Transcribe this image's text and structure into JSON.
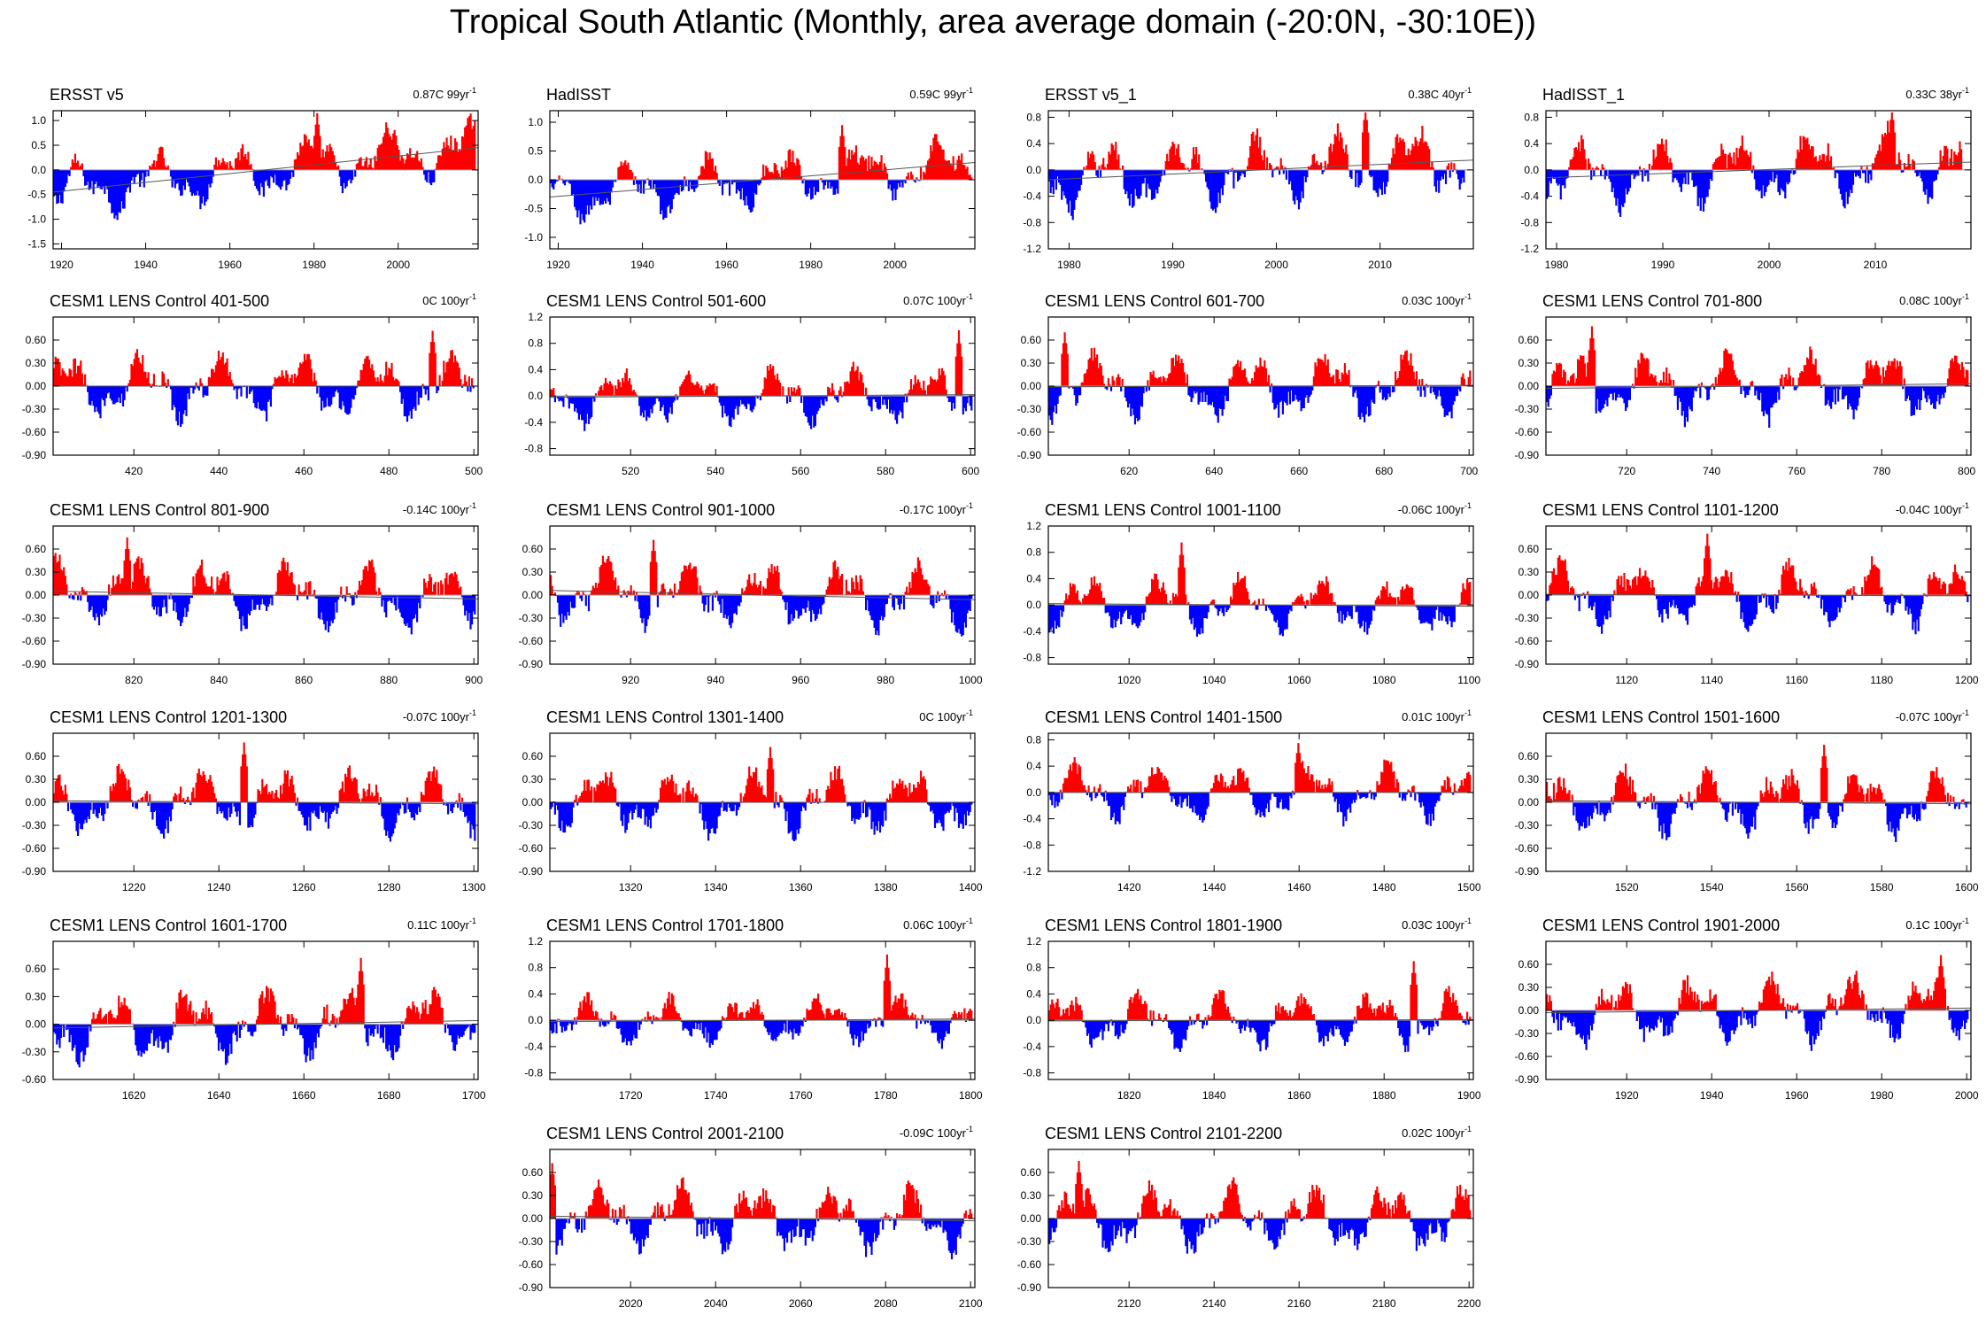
{
  "title": "Tropical South Atlantic (Monthly, area average domain (-20:0N, -30:10E))",
  "colors": {
    "positive": "#ff0000",
    "negative": "#0000ff",
    "zero_line": "#999999",
    "frame": "#000000"
  },
  "chart_data": [
    {
      "type": "bar",
      "title": "ERSST v5",
      "trend": "0.87C 99yr",
      "trend_unit_superscript": "-1",
      "x_range": [
        1918,
        2019
      ],
      "x_ticks": [
        1920,
        1940,
        1960,
        1980,
        2000
      ],
      "y_range": [
        -1.6,
        1.2
      ],
      "y_ticks": [
        "-1.5",
        "-1.0",
        "-0.5",
        "0.0",
        "0.5",
        "1.0"
      ],
      "y_tick_values": [
        -1.5,
        -1.0,
        -0.5,
        0.0,
        0.5,
        1.0
      ],
      "trend_line": [
        -0.45,
        0.45
      ],
      "amplitude": 0.55,
      "spike": 1.15
    },
    {
      "type": "bar",
      "title": "HadISST",
      "trend": "0.59C 99yr",
      "trend_unit_superscript": "-1",
      "x_range": [
        1918,
        2019
      ],
      "x_ticks": [
        1920,
        1940,
        1960,
        1980,
        2000
      ],
      "y_range": [
        -1.2,
        1.2
      ],
      "y_ticks": [
        "-1.0",
        "-0.5",
        "0.0",
        "0.5",
        "1.0"
      ],
      "y_tick_values": [
        -1.0,
        -0.5,
        0.0,
        0.5,
        1.0
      ],
      "trend_line": [
        -0.3,
        0.3
      ],
      "amplitude": 0.45,
      "spike": 0.95
    },
    {
      "type": "bar",
      "title": "ERSST v5_1",
      "trend": "0.38C 40yr",
      "trend_unit_superscript": "-1",
      "x_range": [
        1978,
        2019
      ],
      "x_ticks": [
        1980,
        1990,
        2000,
        2010
      ],
      "y_range": [
        -1.2,
        0.9
      ],
      "y_ticks": [
        "-1.2",
        "-0.8",
        "-0.4",
        "0.0",
        "0.4",
        "0.8"
      ],
      "y_tick_values": [
        -1.2,
        -0.8,
        -0.4,
        0.0,
        0.4,
        0.8
      ],
      "trend_line": [
        -0.15,
        0.15
      ],
      "amplitude": 0.5,
      "spike": 0.95
    },
    {
      "type": "bar",
      "title": "HadISST_1",
      "trend": "0.33C 38yr",
      "trend_unit_superscript": "-1",
      "x_range": [
        1979,
        2019
      ],
      "x_ticks": [
        1980,
        1990,
        2000,
        2010
      ],
      "y_range": [
        -1.2,
        0.9
      ],
      "y_ticks": [
        "-1.2",
        "-0.8",
        "-0.4",
        "0.0",
        "0.4",
        "0.8"
      ],
      "y_tick_values": [
        -1.2,
        -0.8,
        -0.4,
        0.0,
        0.4,
        0.8
      ],
      "trend_line": [
        -0.12,
        0.12
      ],
      "amplitude": 0.5,
      "spike": 0.95
    },
    {
      "type": "bar",
      "title": "CESM1 LENS Control 401-500",
      "trend": "0C 100yr",
      "trend_unit_superscript": "-1",
      "x_range": [
        401,
        501
      ],
      "x_ticks": [
        420,
        440,
        460,
        480,
        500
      ],
      "y_range": [
        -0.9,
        0.9
      ],
      "y_ticks": [
        "-0.90",
        "-0.60",
        "-0.30",
        "0.00",
        "0.30",
        "0.60"
      ],
      "y_tick_values": [
        -0.9,
        -0.6,
        -0.3,
        0.0,
        0.3,
        0.6
      ],
      "trend_line": [
        0,
        0
      ],
      "amplitude": 0.4,
      "spike": 0.72
    },
    {
      "type": "bar",
      "title": "CESM1 LENS Control 501-600",
      "trend": "0.07C 100yr",
      "trend_unit_superscript": "-1",
      "x_range": [
        501,
        601
      ],
      "x_ticks": [
        520,
        540,
        560,
        580,
        600
      ],
      "y_range": [
        -0.9,
        1.2
      ],
      "y_ticks": [
        "-0.8",
        "-0.4",
        "0.0",
        "0.4",
        "0.8",
        "1.2"
      ],
      "y_tick_values": [
        -0.8,
        -0.4,
        0.0,
        0.4,
        0.8,
        1.2
      ],
      "trend_line": [
        -0.02,
        0.02
      ],
      "amplitude": 0.4,
      "spike": 1.0
    },
    {
      "type": "bar",
      "title": "CESM1 LENS Control 601-700",
      "trend": "0.03C 100yr",
      "trend_unit_superscript": "-1",
      "x_range": [
        601,
        701
      ],
      "x_ticks": [
        620,
        640,
        660,
        680,
        700
      ],
      "y_range": [
        -0.9,
        0.9
      ],
      "y_ticks": [
        "-0.90",
        "-0.60",
        "-0.30",
        "0.00",
        "0.30",
        "0.60"
      ],
      "y_tick_values": [
        -0.9,
        -0.6,
        -0.3,
        0.0,
        0.3,
        0.6
      ],
      "trend_line": [
        -0.01,
        0.01
      ],
      "amplitude": 0.4,
      "spike": 0.7
    },
    {
      "type": "bar",
      "title": "CESM1 LENS Control 701-800",
      "trend": "0.08C 100yr",
      "trend_unit_superscript": "-1",
      "x_range": [
        701,
        801
      ],
      "x_ticks": [
        720,
        740,
        760,
        780,
        800
      ],
      "y_range": [
        -0.9,
        0.9
      ],
      "y_ticks": [
        "-0.90",
        "-0.60",
        "-0.30",
        "0.00",
        "0.30",
        "0.60"
      ],
      "y_tick_values": [
        -0.9,
        -0.6,
        -0.3,
        0.0,
        0.3,
        0.6
      ],
      "trend_line": [
        -0.03,
        0.03
      ],
      "amplitude": 0.4,
      "spike": 0.78
    },
    {
      "type": "bar",
      "title": "CESM1 LENS Control 801-900",
      "trend": "-0.14C 100yr",
      "trend_unit_superscript": "-1",
      "x_range": [
        801,
        901
      ],
      "x_ticks": [
        820,
        840,
        860,
        880,
        900
      ],
      "y_range": [
        -0.9,
        0.9
      ],
      "y_ticks": [
        "-0.90",
        "-0.60",
        "-0.30",
        "0.00",
        "0.30",
        "0.60"
      ],
      "y_tick_values": [
        -0.9,
        -0.6,
        -0.3,
        0.0,
        0.3,
        0.6
      ],
      "trend_line": [
        0.05,
        -0.05
      ],
      "amplitude": 0.4,
      "spike": 0.75
    },
    {
      "type": "bar",
      "title": "CESM1 LENS Control 901-1000",
      "trend": "-0.17C 100yr",
      "trend_unit_superscript": "-1",
      "x_range": [
        901,
        1001
      ],
      "x_ticks": [
        920,
        940,
        960,
        980,
        1000
      ],
      "y_range": [
        -0.9,
        0.9
      ],
      "y_ticks": [
        "-0.90",
        "-0.60",
        "-0.30",
        "0.00",
        "0.30",
        "0.60"
      ],
      "y_tick_values": [
        -0.9,
        -0.6,
        -0.3,
        0.0,
        0.3,
        0.6
      ],
      "trend_line": [
        0.06,
        -0.06
      ],
      "amplitude": 0.4,
      "spike": 0.72
    },
    {
      "type": "bar",
      "title": "CESM1 LENS Control 1001-1100",
      "trend": "-0.06C 100yr",
      "trend_unit_superscript": "-1",
      "x_range": [
        1001,
        1101
      ],
      "x_ticks": [
        1020,
        1040,
        1060,
        1080,
        1100
      ],
      "y_range": [
        -0.9,
        1.2
      ],
      "y_ticks": [
        "-0.8",
        "-0.4",
        "0.0",
        "0.4",
        "0.8",
        "1.2"
      ],
      "y_tick_values": [
        -0.8,
        -0.4,
        0.0,
        0.4,
        0.8,
        1.2
      ],
      "trend_line": [
        0.02,
        -0.02
      ],
      "amplitude": 0.4,
      "spike": 0.95
    },
    {
      "type": "bar",
      "title": "CESM1 LENS Control 1101-1200",
      "trend": "-0.04C 100yr",
      "trend_unit_superscript": "-1",
      "x_range": [
        1101,
        1201
      ],
      "x_ticks": [
        1120,
        1140,
        1160,
        1180,
        1200
      ],
      "y_range": [
        -0.9,
        0.9
      ],
      "y_ticks": [
        "-0.90",
        "-0.60",
        "-0.30",
        "0.00",
        "0.30",
        "0.60"
      ],
      "y_tick_values": [
        -0.9,
        -0.6,
        -0.3,
        0.0,
        0.3,
        0.6
      ],
      "trend_line": [
        0.01,
        -0.01
      ],
      "amplitude": 0.4,
      "spike": 0.8
    },
    {
      "type": "bar",
      "title": "CESM1 LENS Control 1201-1300",
      "trend": "-0.07C 100yr",
      "trend_unit_superscript": "-1",
      "x_range": [
        1201,
        1301
      ],
      "x_ticks": [
        1220,
        1240,
        1260,
        1280,
        1300
      ],
      "y_range": [
        -0.9,
        0.9
      ],
      "y_ticks": [
        "-0.90",
        "-0.60",
        "-0.30",
        "0.00",
        "0.30",
        "0.60"
      ],
      "y_tick_values": [
        -0.9,
        -0.6,
        -0.3,
        0.0,
        0.3,
        0.6
      ],
      "trend_line": [
        0.02,
        -0.02
      ],
      "amplitude": 0.4,
      "spike": 0.78
    },
    {
      "type": "bar",
      "title": "CESM1 LENS Control 1301-1400",
      "trend": "0C 100yr",
      "trend_unit_superscript": "-1",
      "x_range": [
        1301,
        1401
      ],
      "x_ticks": [
        1320,
        1340,
        1360,
        1380,
        1400
      ],
      "y_range": [
        -0.9,
        0.9
      ],
      "y_ticks": [
        "-0.90",
        "-0.60",
        "-0.30",
        "0.00",
        "0.30",
        "0.60"
      ],
      "y_tick_values": [
        -0.9,
        -0.6,
        -0.3,
        0.0,
        0.3,
        0.6
      ],
      "trend_line": [
        0,
        0
      ],
      "amplitude": 0.4,
      "spike": 0.72
    },
    {
      "type": "bar",
      "title": "CESM1 LENS Control 1401-1500",
      "trend": "0.01C 100yr",
      "trend_unit_superscript": "-1",
      "x_range": [
        1401,
        1501
      ],
      "x_ticks": [
        1420,
        1440,
        1460,
        1480,
        1500
      ],
      "y_range": [
        -1.2,
        0.9
      ],
      "y_ticks": [
        "-1.2",
        "-0.8",
        "-0.4",
        "0.0",
        "0.4",
        "0.8"
      ],
      "y_tick_values": [
        -1.2,
        -0.8,
        -0.4,
        0.0,
        0.4,
        0.8
      ],
      "trend_line": [
        0,
        0
      ],
      "amplitude": 0.4,
      "spike": 0.75
    },
    {
      "type": "bar",
      "title": "CESM1 LENS Control 1501-1600",
      "trend": "-0.07C 100yr",
      "trend_unit_superscript": "-1",
      "x_range": [
        1501,
        1601
      ],
      "x_ticks": [
        1520,
        1540,
        1560,
        1580,
        1600
      ],
      "y_range": [
        -0.9,
        0.9
      ],
      "y_ticks": [
        "-0.90",
        "-0.60",
        "-0.30",
        "0.00",
        "0.30",
        "0.60"
      ],
      "y_tick_values": [
        -0.9,
        -0.6,
        -0.3,
        0.0,
        0.3,
        0.6
      ],
      "trend_line": [
        0.02,
        -0.02
      ],
      "amplitude": 0.4,
      "spike": 0.75
    },
    {
      "type": "bar",
      "title": "CESM1 LENS Control 1601-1700",
      "trend": "0.11C 100yr",
      "trend_unit_superscript": "-1",
      "x_range": [
        1601,
        1701
      ],
      "x_ticks": [
        1620,
        1640,
        1660,
        1680,
        1700
      ],
      "y_range": [
        -0.6,
        0.9
      ],
      "y_ticks": [
        "-0.60",
        "-0.30",
        "0.00",
        "0.30",
        "0.60"
      ],
      "y_tick_values": [
        -0.6,
        -0.3,
        0.0,
        0.3,
        0.6
      ],
      "trend_line": [
        -0.04,
        0.04
      ],
      "amplitude": 0.35,
      "spike": 0.72
    },
    {
      "type": "bar",
      "title": "CESM1 LENS Control 1701-1800",
      "trend": "0.06C 100yr",
      "trend_unit_superscript": "-1",
      "x_range": [
        1701,
        1801
      ],
      "x_ticks": [
        1720,
        1740,
        1760,
        1780,
        1800
      ],
      "y_range": [
        -0.9,
        1.2
      ],
      "y_ticks": [
        "-0.8",
        "-0.4",
        "0.0",
        "0.4",
        "0.8",
        "1.2"
      ],
      "y_tick_values": [
        -0.8,
        -0.4,
        0.0,
        0.4,
        0.8,
        1.2
      ],
      "trend_line": [
        -0.02,
        0.02
      ],
      "amplitude": 0.35,
      "spike": 1.0
    },
    {
      "type": "bar",
      "title": "CESM1 LENS Control 1801-1900",
      "trend": "0.03C 100yr",
      "trend_unit_superscript": "-1",
      "x_range": [
        1801,
        1901
      ],
      "x_ticks": [
        1820,
        1840,
        1860,
        1880,
        1900
      ],
      "y_range": [
        -0.9,
        1.2
      ],
      "y_ticks": [
        "-0.8",
        "-0.4",
        "0.0",
        "0.4",
        "0.8",
        "1.2"
      ],
      "y_tick_values": [
        -0.8,
        -0.4,
        0.0,
        0.4,
        0.8,
        1.2
      ],
      "trend_line": [
        -0.01,
        0.01
      ],
      "amplitude": 0.4,
      "spike": 0.9
    },
    {
      "type": "bar",
      "title": "CESM1 LENS Control 1901-2000",
      "trend": "0.1C 100yr",
      "trend_unit_superscript": "-1",
      "x_range": [
        1901,
        2001
      ],
      "x_ticks": [
        1920,
        1940,
        1960,
        1980,
        2000
      ],
      "y_range": [
        -0.9,
        0.9
      ],
      "y_ticks": [
        "-0.90",
        "-0.60",
        "-0.30",
        "0.00",
        "0.30",
        "0.60"
      ],
      "y_tick_values": [
        -0.9,
        -0.6,
        -0.3,
        0.0,
        0.3,
        0.6
      ],
      "trend_line": [
        -0.03,
        0.03
      ],
      "amplitude": 0.4,
      "spike": 0.72
    },
    {
      "type": "bar",
      "title": "CESM1 LENS Control 2001-2100",
      "trend": "-0.09C 100yr",
      "trend_unit_superscript": "-1",
      "x_range": [
        2001,
        2101
      ],
      "x_ticks": [
        2020,
        2040,
        2060,
        2080,
        2100
      ],
      "y_range": [
        -0.9,
        0.9
      ],
      "y_ticks": [
        "-0.90",
        "-0.60",
        "-0.30",
        "0.00",
        "0.30",
        "0.60"
      ],
      "y_tick_values": [
        -0.9,
        -0.6,
        -0.3,
        0.0,
        0.3,
        0.6
      ],
      "trend_line": [
        0.03,
        -0.03
      ],
      "amplitude": 0.4,
      "spike": 0.72
    },
    {
      "type": "bar",
      "title": "CESM1 LENS Control 2101-2200",
      "trend": "0.02C 100yr",
      "trend_unit_superscript": "-1",
      "x_range": [
        2101,
        2201
      ],
      "x_ticks": [
        2120,
        2140,
        2160,
        2180,
        2200
      ],
      "y_range": [
        -0.9,
        0.9
      ],
      "y_ticks": [
        "-0.90",
        "-0.60",
        "-0.30",
        "0.00",
        "0.30",
        "0.60"
      ],
      "y_tick_values": [
        -0.9,
        -0.6,
        -0.3,
        0.0,
        0.3,
        0.6
      ],
      "trend_line": [
        0,
        0
      ],
      "amplitude": 0.4,
      "spike": 0.75
    }
  ]
}
